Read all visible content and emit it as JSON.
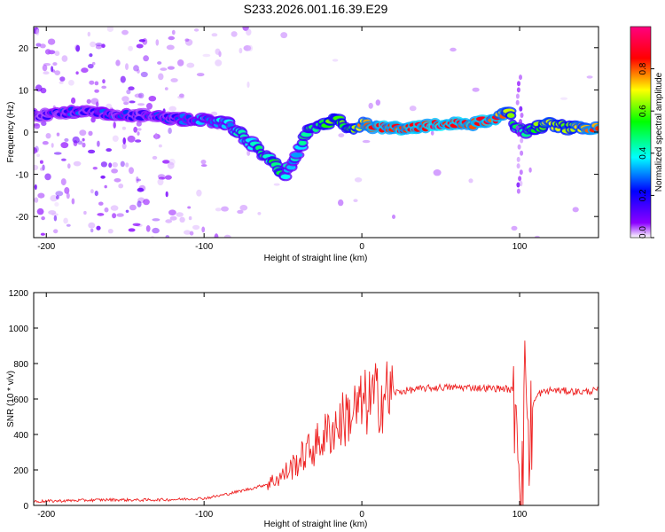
{
  "title": "S233.2026.001.16.39.E29",
  "chart_data": [
    {
      "type": "heatmap",
      "title": "S233.2026.001.16.39.E29",
      "xlabel": "Height of straight line (km)",
      "ylabel": "Frequency (Hz)",
      "xlim": [
        -208,
        150
      ],
      "ylim": [
        -25,
        25
      ],
      "xticks": [
        -200,
        -100,
        0,
        100
      ],
      "yticks": [
        -20,
        -10,
        0,
        10,
        20
      ],
      "colorbar": {
        "label": "Normalized spectral amplitude",
        "range": [
          0,
          1
        ],
        "ticks": [
          "0.0",
          "0.2",
          "0.4",
          "0.6",
          "0.8"
        ],
        "tick_values": [
          0,
          0.2,
          0.4,
          0.6,
          0.8
        ],
        "colors": [
          "#ffffff",
          "#8b00ff",
          "#0000ff",
          "#00ffff",
          "#00ff00",
          "#ffff00",
          "#ff0000",
          "#ff0080"
        ]
      },
      "ridge": {
        "x": [
          -200,
          -180,
          -160,
          -140,
          -120,
          -100,
          -85,
          -72,
          -60,
          -52,
          -48,
          -42,
          -35,
          -25,
          -15,
          -8,
          0,
          10,
          30,
          50,
          70,
          85,
          92,
          98,
          103,
          110,
          120,
          130,
          150
        ],
        "freq": [
          4,
          5,
          4,
          4,
          3,
          3,
          2,
          -2,
          -6,
          -9,
          -10,
          -6,
          0,
          2,
          3,
          0,
          2,
          1,
          1,
          2,
          2,
          3,
          5,
          1,
          0,
          1,
          2,
          1,
          1
        ],
        "amplitude": [
          0.25,
          0.3,
          0.3,
          0.25,
          0.3,
          0.35,
          0.4,
          0.45,
          0.5,
          0.5,
          0.45,
          0.4,
          0.5,
          0.55,
          0.6,
          0.55,
          0.75,
          0.85,
          0.85,
          0.9,
          0.85,
          0.85,
          0.7,
          0.5,
          0.45,
          0.6,
          0.7,
          0.65,
          0.8
        ]
      }
    },
    {
      "type": "line",
      "xlabel": "Height of straight line (km)",
      "ylabel": "SNR (10 * v/v)",
      "xlim": [
        -208,
        150
      ],
      "ylim": [
        0,
        1200
      ],
      "xticks": [
        -200,
        -100,
        0,
        100
      ],
      "yticks": [
        0,
        200,
        400,
        600,
        800,
        1000,
        1200
      ],
      "series": [
        {
          "name": "SNR",
          "color": "#ee2222",
          "x": [
            -208,
            -180,
            -160,
            -140,
            -120,
            -100,
            -90,
            -80,
            -70,
            -60,
            -50,
            -45,
            -40,
            -35,
            -30,
            -25,
            -20,
            -15,
            -10,
            -5,
            0,
            5,
            10,
            20,
            30,
            40,
            50,
            60,
            70,
            80,
            90,
            95,
            98,
            100,
            102,
            104,
            106,
            108,
            112,
            120,
            130,
            140,
            150
          ],
          "y": [
            22,
            28,
            32,
            30,
            33,
            40,
            55,
            75,
            95,
            120,
            170,
            210,
            250,
            300,
            330,
            380,
            420,
            460,
            500,
            530,
            560,
            590,
            610,
            635,
            650,
            660,
            665,
            665,
            665,
            660,
            660,
            650,
            580,
            300,
            120,
            900,
            200,
            560,
            630,
            650,
            645,
            640,
            650
          ]
        }
      ]
    }
  ]
}
